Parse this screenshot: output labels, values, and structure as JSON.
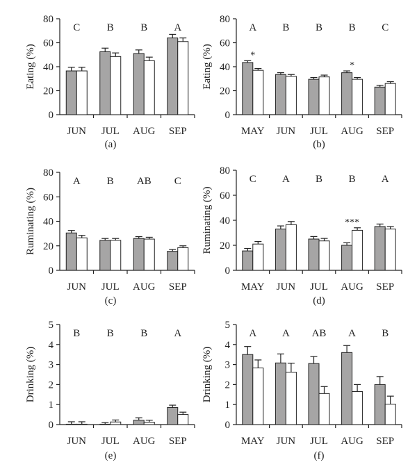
{
  "colors": {
    "series_a": "#a6a5a5",
    "series_b": "#ffffff",
    "stroke": "#222222"
  },
  "chart_data": [
    {
      "type": "bar",
      "panel": "(a)",
      "ylabel": "Eating (%)",
      "ylim": [
        0,
        80
      ],
      "yticks": [
        "0",
        "20",
        "40",
        "60",
        "80"
      ],
      "categories": [
        "JUN",
        "JUL",
        "AUG",
        "SEP"
      ],
      "letters": [
        "C",
        "B",
        "B",
        "A"
      ],
      "series": [
        {
          "values": [
            36.5,
            52.5,
            51,
            64
          ],
          "errors": [
            3,
            3,
            3,
            3
          ]
        },
        {
          "values": [
            36.5,
            48.5,
            45,
            61
          ],
          "errors": [
            3,
            3,
            3,
            3
          ]
        }
      ],
      "significance": [
        "",
        "",
        "",
        ""
      ]
    },
    {
      "type": "bar",
      "panel": "(b)",
      "ylabel": "Eating (%)",
      "ylim": [
        0,
        80
      ],
      "yticks": [
        "0",
        "20",
        "40",
        "60",
        "80"
      ],
      "categories": [
        "MAY",
        "JUN",
        "JUL",
        "AUG",
        "SEP"
      ],
      "letters": [
        "A",
        "B",
        "B",
        "B",
        "C"
      ],
      "series": [
        {
          "values": [
            43.5,
            33.5,
            29.5,
            35,
            23
          ],
          "errors": [
            1.5,
            1.5,
            1.5,
            1.5,
            1.5
          ]
        },
        {
          "values": [
            37,
            32,
            31.5,
            29.5,
            26
          ],
          "errors": [
            1.5,
            1.5,
            1.5,
            1.5,
            1.5
          ]
        }
      ],
      "significance": [
        "*",
        "",
        "",
        "*",
        ""
      ]
    },
    {
      "type": "bar",
      "panel": "(c)",
      "ylabel": "Ruminating (%)",
      "ylim": [
        0,
        80
      ],
      "yticks": [
        "0",
        "20",
        "40",
        "60",
        "80"
      ],
      "categories": [
        "JUN",
        "JUL",
        "AUG",
        "SEP"
      ],
      "letters": [
        "A",
        "B",
        "AB",
        "C"
      ],
      "series": [
        {
          "values": [
            30.5,
            24.5,
            26,
            15.5
          ],
          "errors": [
            2,
            1.5,
            1.5,
            1.5
          ]
        },
        {
          "values": [
            26.5,
            24.5,
            25.5,
            18.5
          ],
          "errors": [
            2,
            1.5,
            1.5,
            1.5
          ]
        }
      ],
      "significance": [
        "",
        "",
        "",
        ""
      ]
    },
    {
      "type": "bar",
      "panel": "(d)",
      "ylabel": "Ruminating (%)",
      "ylim": [
        0,
        80
      ],
      "yticks": [
        "0",
        "20",
        "40",
        "60",
        "80"
      ],
      "categories": [
        "MAY",
        "JUN",
        "JUL",
        "AUG",
        "SEP"
      ],
      "letters": [
        "C",
        "A",
        "B",
        "B",
        "A"
      ],
      "series": [
        {
          "values": [
            15.5,
            33,
            25,
            20,
            35
          ],
          "errors": [
            2,
            2.5,
            2,
            2,
            2
          ]
        },
        {
          "values": [
            21,
            36.5,
            23.5,
            32,
            33
          ],
          "errors": [
            2,
            2.5,
            2,
            2,
            2
          ]
        }
      ],
      "significance": [
        "",
        "",
        "",
        "***",
        ""
      ]
    },
    {
      "type": "bar",
      "panel": "(e)",
      "ylabel": "Drinking (%)",
      "ylim": [
        0,
        5
      ],
      "yticks": [
        "0",
        "1",
        "2",
        "3",
        "4",
        "5"
      ],
      "categories": [
        "JUN",
        "JUL",
        "AUG",
        "SEP"
      ],
      "letters": [
        "B",
        "B",
        "B",
        "A"
      ],
      "series": [
        {
          "values": [
            0.02,
            0.02,
            0.22,
            0.85
          ],
          "errors": [
            0.12,
            0.08,
            0.12,
            0.12
          ]
        },
        {
          "values": [
            0.02,
            0.13,
            0.12,
            0.5
          ],
          "errors": [
            0.12,
            0.1,
            0.1,
            0.12
          ]
        }
      ],
      "significance": [
        "",
        "",
        "",
        ""
      ]
    },
    {
      "type": "bar",
      "panel": "(f)",
      "ylabel": "Drinking (%)",
      "ylim": [
        0,
        5
      ],
      "yticks": [
        "0",
        "1",
        "2",
        "3",
        "4",
        "5"
      ],
      "categories": [
        "MAY",
        "JUN",
        "JUL",
        "AUG",
        "SEP"
      ],
      "letters": [
        "A",
        "A",
        "AB",
        "A",
        "B"
      ],
      "series": [
        {
          "values": [
            3.5,
            3.08,
            3.05,
            3.6,
            2.0
          ],
          "errors": [
            0.4,
            0.45,
            0.35,
            0.35,
            0.4
          ]
        },
        {
          "values": [
            2.83,
            2.62,
            1.55,
            1.65,
            1.02
          ],
          "errors": [
            0.4,
            0.45,
            0.35,
            0.35,
            0.4
          ]
        }
      ],
      "significance": [
        "",
        "",
        "",
        "",
        ""
      ]
    }
  ]
}
